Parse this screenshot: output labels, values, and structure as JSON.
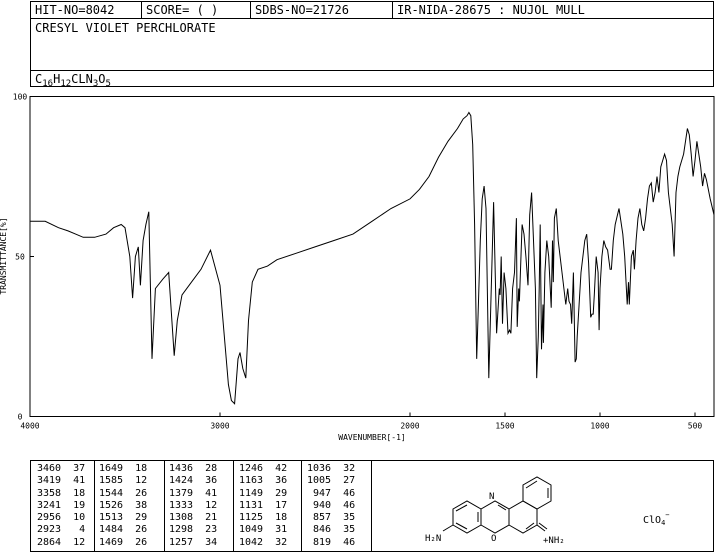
{
  "header": {
    "hit_no": "HIT-NO=8042",
    "score": "SCORE=  (   )",
    "sdbs_no": "SDBS-NO=21726",
    "ir_no": "IR-NIDA-28675 : NUJOL MULL",
    "compound_name": "CRESYL VIOLET PERCHLORATE",
    "formula": [
      {
        "t": "C",
        "sub": false
      },
      {
        "t": "16",
        "sub": true
      },
      {
        "t": "H",
        "sub": false
      },
      {
        "t": "12",
        "sub": true
      },
      {
        "t": "CLN",
        "sub": false
      },
      {
        "t": "3",
        "sub": true
      },
      {
        "t": "O",
        "sub": false
      },
      {
        "t": "5",
        "sub": true
      }
    ]
  },
  "structure": {
    "counter_ion": "ClO",
    "counter_ion_sub": "4",
    "counter_ion_sup": "−",
    "label_h2n": "H₂N",
    "label_o": "O",
    "label_nh2": "+NH₂",
    "label_n": "N"
  },
  "chart_data": {
    "type": "line",
    "xlabel": "WAVENUMBER[-1]",
    "ylabel": "TRANSMITTANCE[%]",
    "xlim": [
      4000,
      400
    ],
    "ylim": [
      0,
      100
    ],
    "x_ticks": [
      4000,
      3000,
      2000,
      1500,
      1000,
      500
    ],
    "y_ticks": [
      0,
      50,
      100
    ],
    "series": [
      {
        "points": [
          [
            4000,
            61
          ],
          [
            3920,
            61
          ],
          [
            3850,
            59
          ],
          [
            3800,
            58
          ],
          [
            3760,
            57
          ],
          [
            3720,
            56
          ],
          [
            3660,
            56
          ],
          [
            3600,
            57
          ],
          [
            3560,
            59
          ],
          [
            3520,
            60
          ],
          [
            3500,
            59
          ],
          [
            3475,
            50
          ],
          [
            3460,
            37
          ],
          [
            3445,
            50
          ],
          [
            3430,
            53
          ],
          [
            3419,
            41
          ],
          [
            3405,
            55
          ],
          [
            3390,
            60
          ],
          [
            3375,
            64
          ],
          [
            3358,
            18
          ],
          [
            3340,
            40
          ],
          [
            3300,
            43
          ],
          [
            3270,
            45
          ],
          [
            3241,
            19
          ],
          [
            3225,
            30
          ],
          [
            3200,
            38
          ],
          [
            3150,
            42
          ],
          [
            3100,
            46
          ],
          [
            3050,
            52
          ],
          [
            3000,
            41
          ],
          [
            2970,
            20
          ],
          [
            2956,
            10
          ],
          [
            2940,
            5
          ],
          [
            2923,
            4
          ],
          [
            2905,
            18
          ],
          [
            2895,
            20
          ],
          [
            2880,
            15
          ],
          [
            2864,
            12
          ],
          [
            2850,
            30
          ],
          [
            2830,
            42
          ],
          [
            2800,
            46
          ],
          [
            2750,
            47
          ],
          [
            2700,
            49
          ],
          [
            2600,
            51
          ],
          [
            2500,
            53
          ],
          [
            2400,
            55
          ],
          [
            2300,
            57
          ],
          [
            2200,
            61
          ],
          [
            2100,
            65
          ],
          [
            2000,
            68
          ],
          [
            1950,
            71
          ],
          [
            1900,
            75
          ],
          [
            1850,
            81
          ],
          [
            1800,
            86
          ],
          [
            1750,
            90
          ],
          [
            1720,
            93
          ],
          [
            1700,
            94
          ],
          [
            1690,
            95
          ],
          [
            1680,
            94
          ],
          [
            1670,
            85
          ],
          [
            1660,
            60
          ],
          [
            1649,
            18
          ],
          [
            1640,
            35
          ],
          [
            1630,
            55
          ],
          [
            1620,
            68
          ],
          [
            1610,
            72
          ],
          [
            1600,
            65
          ],
          [
            1585,
            12
          ],
          [
            1570,
            45
          ],
          [
            1560,
            67
          ],
          [
            1544,
            26
          ],
          [
            1530,
            40
          ],
          [
            1526,
            38
          ],
          [
            1520,
            50
          ],
          [
            1513,
            29
          ],
          [
            1505,
            45
          ],
          [
            1495,
            40
          ],
          [
            1484,
            26
          ],
          [
            1476,
            27
          ],
          [
            1469,
            26
          ],
          [
            1460,
            40
          ],
          [
            1450,
            45
          ],
          [
            1440,
            62
          ],
          [
            1436,
            28
          ],
          [
            1428,
            40
          ],
          [
            1424,
            36
          ],
          [
            1410,
            60
          ],
          [
            1400,
            57
          ],
          [
            1390,
            50
          ],
          [
            1379,
            41
          ],
          [
            1370,
            63
          ],
          [
            1360,
            70
          ],
          [
            1350,
            55
          ],
          [
            1340,
            40
          ],
          [
            1333,
            12
          ],
          [
            1325,
            25
          ],
          [
            1320,
            40
          ],
          [
            1315,
            60
          ],
          [
            1308,
            21
          ],
          [
            1300,
            35
          ],
          [
            1298,
            23
          ],
          [
            1290,
            45
          ],
          [
            1280,
            55
          ],
          [
            1270,
            50
          ],
          [
            1257,
            34
          ],
          [
            1250,
            55
          ],
          [
            1246,
            42
          ],
          [
            1240,
            62
          ],
          [
            1230,
            65
          ],
          [
            1220,
            55
          ],
          [
            1200,
            45
          ],
          [
            1180,
            35
          ],
          [
            1170,
            40
          ],
          [
            1163,
            36
          ],
          [
            1155,
            35
          ],
          [
            1149,
            29
          ],
          [
            1140,
            45
          ],
          [
            1131,
            17
          ],
          [
            1125,
            18
          ],
          [
            1120,
            25
          ],
          [
            1110,
            35
          ],
          [
            1100,
            45
          ],
          [
            1080,
            55
          ],
          [
            1070,
            57
          ],
          [
            1060,
            48
          ],
          [
            1049,
            31
          ],
          [
            1042,
            32
          ],
          [
            1036,
            32
          ],
          [
            1030,
            38
          ],
          [
            1020,
            50
          ],
          [
            1010,
            45
          ],
          [
            1005,
            27
          ],
          [
            1000,
            40
          ],
          [
            990,
            50
          ],
          [
            980,
            55
          ],
          [
            970,
            53
          ],
          [
            960,
            52
          ],
          [
            947,
            46
          ],
          [
            940,
            46
          ],
          [
            930,
            55
          ],
          [
            920,
            60
          ],
          [
            900,
            65
          ],
          [
            880,
            57
          ],
          [
            870,
            50
          ],
          [
            857,
            35
          ],
          [
            850,
            42
          ],
          [
            846,
            35
          ],
          [
            835,
            50
          ],
          [
            825,
            52
          ],
          [
            819,
            46
          ],
          [
            810,
            55
          ],
          [
            800,
            62
          ],
          [
            790,
            65
          ],
          [
            780,
            60
          ],
          [
            770,
            58
          ],
          [
            760,
            62
          ],
          [
            750,
            68
          ],
          [
            740,
            72
          ],
          [
            730,
            73
          ],
          [
            720,
            67
          ],
          [
            710,
            70
          ],
          [
            700,
            75
          ],
          [
            690,
            70
          ],
          [
            680,
            78
          ],
          [
            670,
            80
          ],
          [
            660,
            82
          ],
          [
            650,
            80
          ],
          [
            640,
            70
          ],
          [
            630,
            65
          ],
          [
            620,
            60
          ],
          [
            610,
            50
          ],
          [
            600,
            70
          ],
          [
            590,
            75
          ],
          [
            580,
            78
          ],
          [
            570,
            80
          ],
          [
            560,
            82
          ],
          [
            550,
            86
          ],
          [
            540,
            90
          ],
          [
            530,
            88
          ],
          [
            520,
            82
          ],
          [
            510,
            75
          ],
          [
            500,
            80
          ],
          [
            490,
            86
          ],
          [
            480,
            82
          ],
          [
            470,
            78
          ],
          [
            460,
            72
          ],
          [
            450,
            76
          ],
          [
            440,
            74
          ],
          [
            420,
            68
          ],
          [
            400,
            63
          ]
        ]
      }
    ],
    "peak_table_columns": [
      [
        "3460  37",
        "3419  41",
        "3358  18",
        "3241  19",
        "2956  10",
        "2923   4",
        "2864  12"
      ],
      [
        "1649  18",
        "1585  12",
        "1544  26",
        "1526  38",
        "1513  29",
        "1484  26",
        "1469  26"
      ],
      [
        "1436  28",
        "1424  36",
        "1379  41",
        "1333  12",
        "1308  21",
        "1298  23",
        "1257  34"
      ],
      [
        "1246  42",
        "1163  36",
        "1149  29",
        "1131  17",
        "1125  18",
        "1049  31",
        "1042  32"
      ],
      [
        "1036  32",
        "1005  27",
        " 947  46",
        " 940  46",
        " 857  35",
        " 846  35",
        " 819  46"
      ]
    ]
  }
}
